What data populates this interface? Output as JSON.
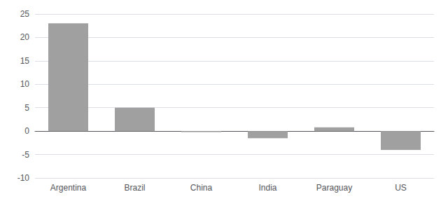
{
  "chart_data": {
    "type": "bar",
    "categories": [
      "Argentina",
      "Brazil",
      "China",
      "India",
      "Paraguay",
      "US"
    ],
    "values": [
      23.0,
      5.0,
      -0.2,
      -1.5,
      0.8,
      -4.0
    ],
    "color": "#a0a0a0",
    "ylim": [
      -10,
      25
    ],
    "yticks": [
      -10,
      -5,
      0,
      5,
      10,
      15,
      20,
      25
    ],
    "grid": true
  }
}
